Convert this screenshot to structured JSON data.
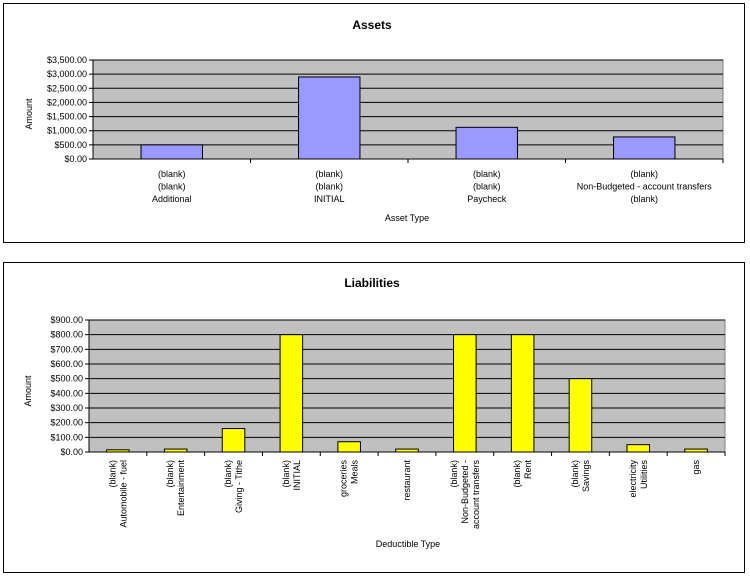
{
  "colors": {
    "plot_background": "#c0c0c0",
    "assets_bar": "#9999ff",
    "liabilities_bar": "#ffff00",
    "gridline": "#000000"
  },
  "chart_data": [
    {
      "type": "bar",
      "title": "Assets",
      "xlabel": "Asset Type",
      "ylabel": "Amount",
      "ylim": [
        0,
        3500
      ],
      "yticks": [
        0,
        500,
        1000,
        1500,
        2000,
        2500,
        3000,
        3500
      ],
      "ytick_labels": [
        "$0.00",
        "$500.00",
        "$1,000.00",
        "$1,500.00",
        "$2,000.00",
        "$2,500.00",
        "$3,000.00",
        "$3,500.00"
      ],
      "grid": true,
      "categories": [
        [
          "(blank)",
          "(blank)",
          "Additional"
        ],
        [
          "(blank)",
          "(blank)",
          "INITIAL"
        ],
        [
          "(blank)",
          "(blank)",
          "Paycheck"
        ],
        [
          "(blank)",
          "Non-Budgeted - account transfers",
          "(blank)"
        ]
      ],
      "values": [
        500,
        2900,
        1120,
        780
      ]
    },
    {
      "type": "bar",
      "title": "Liabilities",
      "xlabel": "Deductible Type",
      "ylabel": "Amount",
      "ylim": [
        0,
        900
      ],
      "yticks": [
        0,
        100,
        200,
        300,
        400,
        500,
        600,
        700,
        800,
        900
      ],
      "ytick_labels": [
        "$0.00",
        "$100.00",
        "$200.00",
        "$300.00",
        "$400.00",
        "$500.00",
        "$600.00",
        "$700.00",
        "$800.00",
        "$900.00"
      ],
      "grid": true,
      "categories": [
        [
          "(blank)",
          "Automobile - fuel"
        ],
        [
          "(blank)",
          "Entertainment"
        ],
        [
          "(blank)",
          "Giving - Tithe"
        ],
        [
          "(blank)",
          "INITIAL"
        ],
        [
          "groceries",
          "Meals"
        ],
        [
          "restaurant"
        ],
        [
          "(blank)",
          "Non-Budgeted -",
          "account transfers"
        ],
        [
          "(blank)",
          "Rent"
        ],
        [
          "(blank)",
          "Savings"
        ],
        [
          "electricity",
          "Utilities"
        ],
        [
          "gas"
        ]
      ],
      "values": [
        15,
        20,
        160,
        800,
        70,
        20,
        800,
        800,
        500,
        50,
        20
      ]
    }
  ]
}
